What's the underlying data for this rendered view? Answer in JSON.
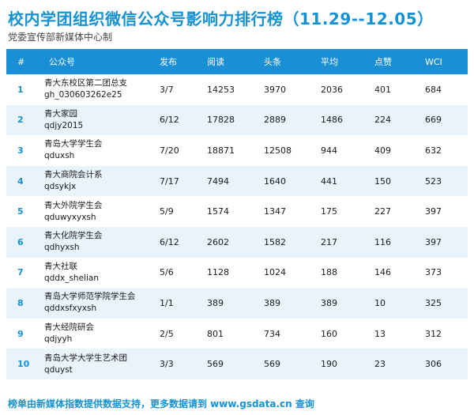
{
  "title": "校内学团组织微信公众号影响力排行榜（11.29--12.05）",
  "subtitle": "党委宣传部新媒体中心制",
  "headers": [
    "#",
    "公众号",
    "发布",
    "阅读",
    "头条",
    "平均",
    "点赞",
    "WCI"
  ],
  "rows": [
    {
      "rank": "1",
      "name": "青大东校区第二团总支",
      "id": "gh_030603262e25",
      "publish": "3/7",
      "reads": "14253",
      "headline": "3970",
      "avg": "2036",
      "likes": "401",
      "wci": "684"
    },
    {
      "rank": "2",
      "name": "青大家园",
      "id": "qdjy2015",
      "publish": "6/12",
      "reads": "17828",
      "headline": "2889",
      "avg": "1486",
      "likes": "224",
      "wci": "669"
    },
    {
      "rank": "3",
      "name": "青岛大学学生会",
      "id": "qduxsh",
      "publish": "7/20",
      "reads": "18871",
      "headline": "12508",
      "avg": "944",
      "likes": "409",
      "wci": "632"
    },
    {
      "rank": "4",
      "name": "青大商院会计系",
      "id": "qdsykjx",
      "publish": "7/17",
      "reads": "7494",
      "headline": "1640",
      "avg": "441",
      "likes": "150",
      "wci": "523"
    },
    {
      "rank": "5",
      "name": "青大外院学生会",
      "id": "qduwyxyxsh",
      "publish": "5/9",
      "reads": "1574",
      "headline": "1347",
      "avg": "175",
      "likes": "227",
      "wci": "397"
    },
    {
      "rank": "6",
      "name": "青大化院学生会",
      "id": "qdhyxsh",
      "publish": "6/12",
      "reads": "2602",
      "headline": "1582",
      "avg": "217",
      "likes": "116",
      "wci": "397"
    },
    {
      "rank": "7",
      "name": "青大社联",
      "id": "qddx_shelian",
      "publish": "5/6",
      "reads": "1128",
      "headline": "1024",
      "avg": "188",
      "likes": "146",
      "wci": "373"
    },
    {
      "rank": "8",
      "name": "青岛大学师范学院学生会",
      "id": "qddxsfxyxsh",
      "publish": "1/1",
      "reads": "389",
      "headline": "389",
      "avg": "389",
      "likes": "10",
      "wci": "325"
    },
    {
      "rank": "9",
      "name": "青大经院研会",
      "id": "qdjyyh",
      "publish": "2/5",
      "reads": "801",
      "headline": "734",
      "avg": "160",
      "likes": "13",
      "wci": "312"
    },
    {
      "rank": "10",
      "name": "青岛大学大学生艺术团",
      "id": "qduyst",
      "publish": "3/3",
      "reads": "569",
      "headline": "569",
      "avg": "190",
      "likes": "23",
      "wci": "306"
    }
  ],
  "footer": "榜单由新媒体指数提供数据支持，更多数据请到 www.gsdata.cn 查询"
}
